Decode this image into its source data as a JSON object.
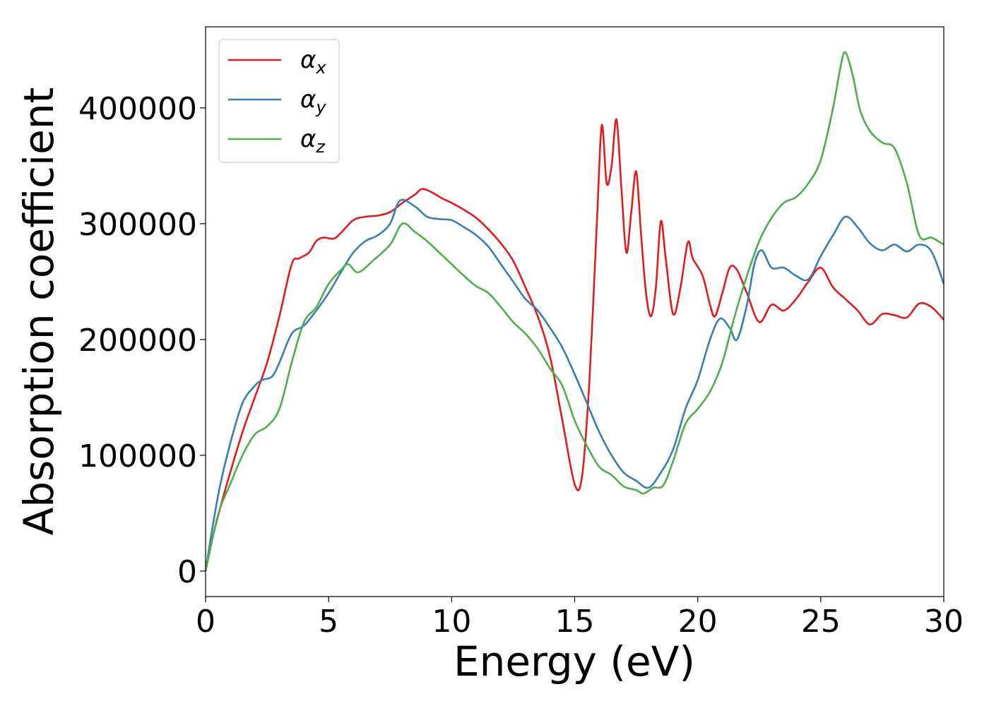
{
  "chart_data": {
    "type": "line",
    "xlabel": "Energy (eV)",
    "ylabel": "Absorption coefficient",
    "xlim": [
      0,
      30
    ],
    "ylim": [
      -22000,
      470000
    ],
    "xticks": [
      0,
      5,
      10,
      15,
      20,
      25,
      30
    ],
    "xtick_labels": [
      "0",
      "5",
      "10",
      "15",
      "20",
      "25",
      "30"
    ],
    "yticks": [
      0,
      100000,
      200000,
      300000,
      400000
    ],
    "ytick_labels": [
      "0",
      "100000",
      "200000",
      "300000",
      "400000"
    ],
    "grid": false,
    "legend_position": "top-left",
    "series": [
      {
        "name": "α",
        "subscript": "x",
        "color": "#e41a1c",
        "x": [
          0,
          0.3,
          0.6,
          1.0,
          1.5,
          2.0,
          2.5,
          3.0,
          3.5,
          3.8,
          4.2,
          4.5,
          4.8,
          5.2,
          5.5,
          6.0,
          6.5,
          7.0,
          7.5,
          8.0,
          8.5,
          8.8,
          9.2,
          9.6,
          10.0,
          10.5,
          11.0,
          11.5,
          12.0,
          12.5,
          13.0,
          13.5,
          14.0,
          14.5,
          15.0,
          15.3,
          15.6,
          15.9,
          16.1,
          16.3,
          16.5,
          16.7,
          16.9,
          17.1,
          17.3,
          17.5,
          17.7,
          17.9,
          18.1,
          18.3,
          18.5,
          18.7,
          19.0,
          19.3,
          19.6,
          19.8,
          20.2,
          20.5,
          20.7,
          21.0,
          21.3,
          21.6,
          22.0,
          22.5,
          23.0,
          23.5,
          24.0,
          24.5,
          25.0,
          25.5,
          26.0,
          26.5,
          27.0,
          27.5,
          28.0,
          28.5,
          29.0,
          29.5,
          30.0
        ],
        "y": [
          0,
          30000,
          55000,
          85000,
          120000,
          150000,
          180000,
          220000,
          265000,
          270000,
          275000,
          285000,
          288000,
          287000,
          292000,
          303000,
          306000,
          307000,
          310000,
          318000,
          325000,
          330000,
          327000,
          322000,
          318000,
          312000,
          305000,
          295000,
          283000,
          268000,
          245000,
          220000,
          185000,
          130000,
          75000,
          82000,
          165000,
          300000,
          385000,
          335000,
          350000,
          390000,
          330000,
          275000,
          310000,
          345000,
          290000,
          240000,
          220000,
          245000,
          302000,
          270000,
          222000,
          245000,
          284000,
          270000,
          255000,
          230000,
          220000,
          240000,
          262000,
          260000,
          240000,
          215000,
          230000,
          225000,
          235000,
          250000,
          262000,
          245000,
          235000,
          225000,
          213000,
          222000,
          221000,
          219000,
          231000,
          228000,
          217000
        ]
      },
      {
        "name": "α",
        "subscript": "y",
        "color": "#377eb8",
        "x": [
          0,
          0.3,
          0.6,
          1.0,
          1.5,
          2.0,
          2.3,
          2.7,
          3.0,
          3.5,
          4.0,
          4.5,
          5.0,
          5.5,
          6.0,
          6.5,
          7.0,
          7.5,
          7.9,
          8.5,
          9.0,
          9.5,
          10.0,
          10.5,
          11.0,
          11.5,
          12.0,
          12.5,
          13.0,
          13.5,
          14.0,
          14.5,
          15.0,
          15.5,
          16.0,
          16.5,
          17.0,
          17.5,
          18.0,
          18.5,
          19.0,
          19.5,
          20.0,
          20.5,
          20.9,
          21.3,
          21.6,
          22.0,
          22.3,
          22.6,
          23.0,
          23.5,
          24.0,
          24.5,
          25.0,
          25.5,
          26.0,
          26.5,
          27.0,
          27.5,
          28.0,
          28.5,
          29.0,
          29.5,
          30.0
        ],
        "y": [
          0,
          40000,
          75000,
          110000,
          145000,
          160000,
          165000,
          168000,
          180000,
          205000,
          212000,
          225000,
          240000,
          258000,
          275000,
          285000,
          290000,
          300000,
          320000,
          315000,
          306000,
          304000,
          303000,
          297000,
          290000,
          280000,
          265000,
          250000,
          235000,
          225000,
          210000,
          193000,
          170000,
          145000,
          120000,
          100000,
          85000,
          78000,
          72000,
          85000,
          105000,
          140000,
          165000,
          200000,
          218000,
          210000,
          200000,
          230000,
          265000,
          277000,
          262000,
          262000,
          255000,
          252000,
          272000,
          290000,
          306000,
          297000,
          283000,
          277000,
          282000,
          276000,
          282000,
          276000,
          248000
        ]
      },
      {
        "name": "α",
        "subscript": "z",
        "color": "#4daf4a",
        "x": [
          0,
          0.3,
          0.6,
          1.0,
          1.5,
          2.0,
          2.5,
          3.0,
          3.5,
          4.0,
          4.5,
          5.0,
          5.5,
          5.8,
          6.2,
          6.8,
          7.5,
          8.0,
          8.5,
          9.0,
          9.5,
          10.0,
          10.5,
          11.0,
          11.5,
          12.0,
          12.5,
          13.0,
          13.5,
          14.0,
          14.5,
          15.0,
          15.5,
          16.0,
          16.5,
          17.0,
          17.5,
          17.8,
          18.2,
          18.6,
          19.0,
          19.5,
          20.0,
          20.5,
          21.0,
          21.5,
          22.0,
          22.5,
          23.0,
          23.5,
          24.0,
          24.5,
          25.0,
          25.5,
          25.8,
          26.0,
          26.3,
          26.6,
          27.0,
          27.5,
          28.0,
          28.5,
          29.0,
          29.5,
          30.0
        ],
        "y": [
          0,
          30000,
          55000,
          75000,
          100000,
          118000,
          125000,
          140000,
          180000,
          215000,
          228000,
          248000,
          260000,
          265000,
          258000,
          268000,
          282000,
          300000,
          293000,
          285000,
          275000,
          265000,
          255000,
          246000,
          240000,
          228000,
          215000,
          205000,
          192000,
          175000,
          160000,
          130000,
          108000,
          90000,
          83000,
          73000,
          70000,
          67000,
          72000,
          74000,
          95000,
          127000,
          140000,
          155000,
          180000,
          220000,
          255000,
          285000,
          305000,
          318000,
          323000,
          335000,
          355000,
          400000,
          435000,
          448000,
          428000,
          398000,
          380000,
          370000,
          365000,
          335000,
          290000,
          288000,
          282000
        ]
      }
    ]
  }
}
